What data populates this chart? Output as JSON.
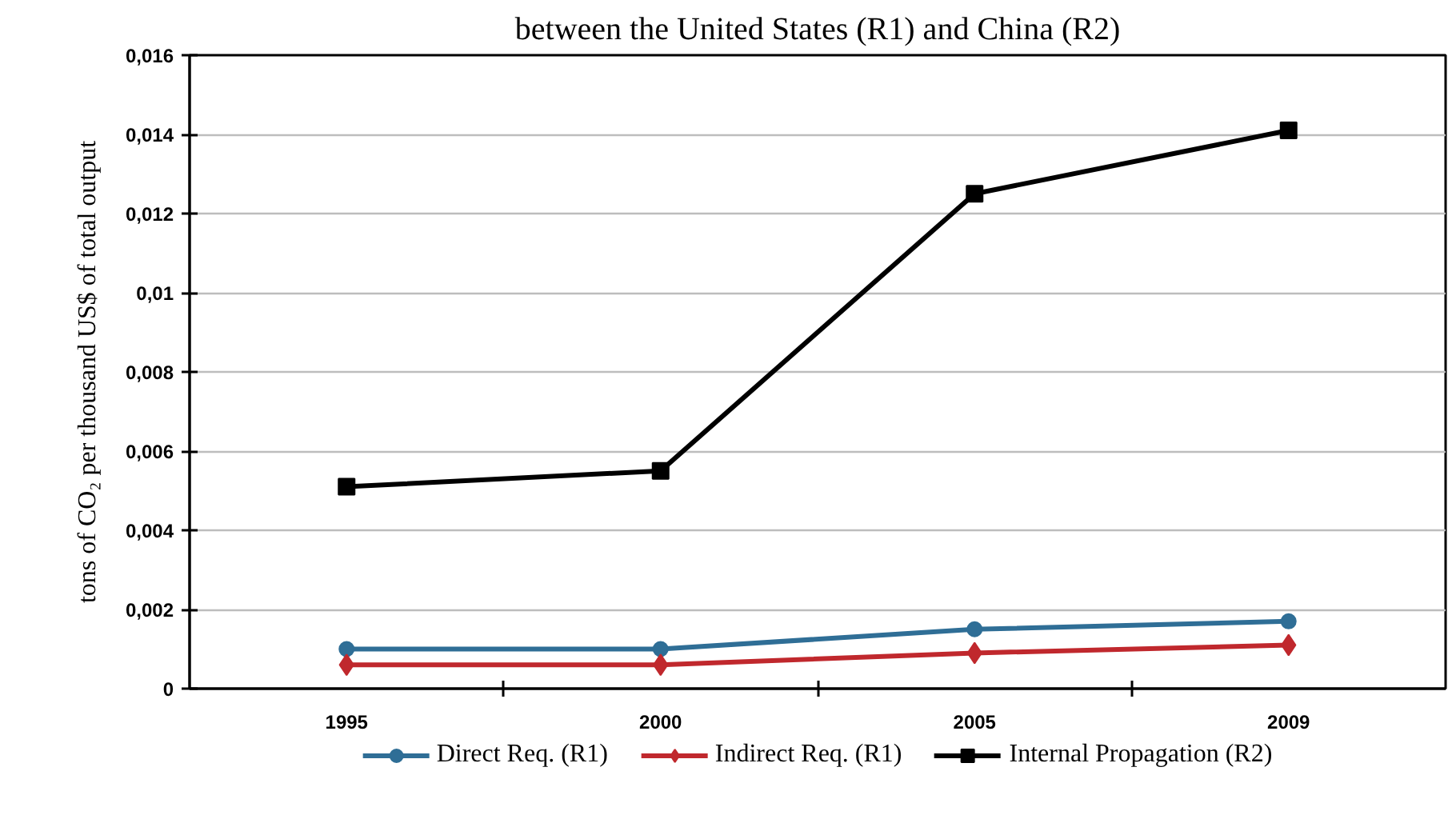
{
  "chart_data": {
    "type": "line",
    "title": "between the United States (R1) and China (R2)",
    "ylabel": "tons of CO₂ per thousand US$ of total output",
    "categories": [
      "1995",
      "2000",
      "2005",
      "2009"
    ],
    "series": [
      {
        "name": "Direct Req. (R1)",
        "color": "#2f6e96",
        "marker": "circle",
        "values": [
          0.001,
          0.001,
          0.0015,
          0.0017
        ]
      },
      {
        "name": "Indirect Req. (R1)",
        "color": "#c0282d",
        "marker": "diamond",
        "values": [
          0.0006,
          0.0006,
          0.0009,
          0.0011
        ]
      },
      {
        "name": "Internal Propagation (R2)",
        "color": "#000000",
        "marker": "square",
        "values": [
          0.0051,
          0.0055,
          0.0125,
          0.0141
        ]
      }
    ],
    "ylim": [
      0,
      0.016
    ],
    "yticks": [
      0,
      {
        "value": 0.002,
        "label": "0,002"
      },
      {
        "value": 0.004,
        "label": "0,004"
      },
      {
        "value": 0.006,
        "label": "0,006"
      },
      {
        "value": 0.008,
        "label": "0,008"
      },
      {
        "value": 0.01,
        "label": "0,01"
      },
      {
        "value": 0.012,
        "label": "0,012"
      },
      {
        "value": 0.014,
        "label": "0,014"
      },
      {
        "value": 0.016,
        "label": "0,016"
      }
    ],
    "grid": "y",
    "legend": "bottom"
  }
}
